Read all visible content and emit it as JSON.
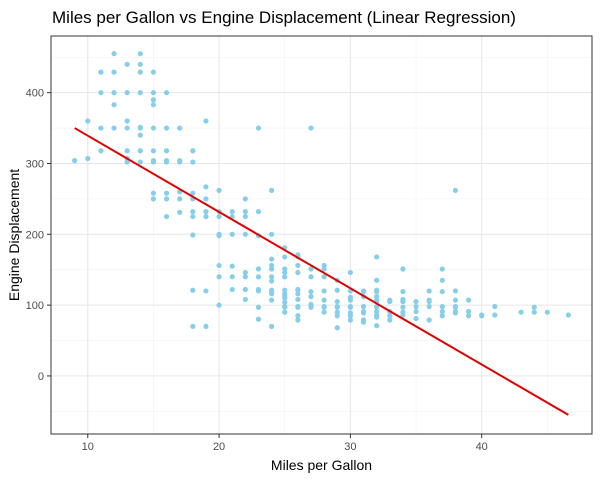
{
  "chart_data": {
    "type": "scatter",
    "title": "Miles per Gallon vs Engine Displacement (Linear Regression)",
    "xlabel": "Miles per Gallon",
    "ylabel": "Engine Displacement",
    "xlim": [
      7.2,
      48.4
    ],
    "ylim": [
      -82,
      480
    ],
    "x_ticks": [
      10,
      20,
      30,
      40
    ],
    "y_ticks": [
      0,
      100,
      200,
      300,
      400
    ],
    "grid": true,
    "legend": "none",
    "points_color": "#87CEEB",
    "line_color": "#E00000",
    "regression_line": {
      "x": [
        9.0,
        46.6
      ],
      "y": [
        350,
        -55
      ]
    },
    "points": [
      [
        9,
        304
      ],
      [
        10,
        307
      ],
      [
        10,
        360
      ],
      [
        11,
        318
      ],
      [
        11,
        350
      ],
      [
        11,
        400
      ],
      [
        11,
        429
      ],
      [
        12,
        350
      ],
      [
        12,
        383
      ],
      [
        12,
        400
      ],
      [
        12,
        429
      ],
      [
        12,
        455
      ],
      [
        13,
        302
      ],
      [
        13,
        307
      ],
      [
        13,
        318
      ],
      [
        13,
        350
      ],
      [
        13,
        360
      ],
      [
        13,
        400
      ],
      [
        13,
        440
      ],
      [
        14,
        302
      ],
      [
        14,
        318
      ],
      [
        14,
        340
      ],
      [
        14,
        350
      ],
      [
        14,
        351
      ],
      [
        14,
        400
      ],
      [
        14,
        429
      ],
      [
        14,
        440
      ],
      [
        14,
        455
      ],
      [
        15,
        250
      ],
      [
        15,
        258
      ],
      [
        15,
        302
      ],
      [
        15,
        304
      ],
      [
        15,
        318
      ],
      [
        15,
        350
      ],
      [
        15,
        383
      ],
      [
        15,
        390
      ],
      [
        15,
        400
      ],
      [
        15,
        429
      ],
      [
        16,
        225
      ],
      [
        16,
        250
      ],
      [
        16,
        258
      ],
      [
        16,
        302
      ],
      [
        16,
        304
      ],
      [
        16,
        318
      ],
      [
        16,
        350
      ],
      [
        16,
        400
      ],
      [
        17,
        231
      ],
      [
        17,
        250
      ],
      [
        17,
        260
      ],
      [
        17,
        302
      ],
      [
        17,
        304
      ],
      [
        17,
        350
      ],
      [
        18,
        70
      ],
      [
        18,
        121
      ],
      [
        18,
        199
      ],
      [
        18,
        225
      ],
      [
        18,
        232
      ],
      [
        18,
        250
      ],
      [
        18,
        258
      ],
      [
        18,
        302
      ],
      [
        18,
        318
      ],
      [
        19,
        70
      ],
      [
        19,
        120
      ],
      [
        19,
        225
      ],
      [
        19,
        232
      ],
      [
        19,
        250
      ],
      [
        19,
        267
      ],
      [
        19,
        360
      ],
      [
        20,
        100
      ],
      [
        20,
        140
      ],
      [
        20,
        156
      ],
      [
        20,
        198
      ],
      [
        20,
        200
      ],
      [
        20,
        225
      ],
      [
        20,
        232
      ],
      [
        20,
        262
      ],
      [
        21,
        122
      ],
      [
        21,
        140
      ],
      [
        21,
        155
      ],
      [
        21,
        200
      ],
      [
        21,
        225
      ],
      [
        21,
        232
      ],
      [
        22,
        108
      ],
      [
        22,
        122
      ],
      [
        22,
        140
      ],
      [
        22,
        146
      ],
      [
        22,
        200
      ],
      [
        22,
        225
      ],
      [
        22,
        232
      ],
      [
        22,
        250
      ],
      [
        23,
        80
      ],
      [
        23,
        97
      ],
      [
        23,
        120
      ],
      [
        23,
        122
      ],
      [
        23,
        140
      ],
      [
        23,
        151
      ],
      [
        23,
        198
      ],
      [
        23,
        232
      ],
      [
        23,
        350
      ],
      [
        24,
        70
      ],
      [
        24,
        107
      ],
      [
        24,
        116
      ],
      [
        24,
        120
      ],
      [
        24,
        121
      ],
      [
        24,
        134
      ],
      [
        24,
        140
      ],
      [
        24,
        151
      ],
      [
        24,
        156
      ],
      [
        24,
        165
      ],
      [
        24,
        200
      ],
      [
        24,
        262
      ],
      [
        25,
        90
      ],
      [
        25,
        97
      ],
      [
        25,
        98
      ],
      [
        25,
        104
      ],
      [
        25,
        110
      ],
      [
        25,
        113
      ],
      [
        25,
        116
      ],
      [
        25,
        121
      ],
      [
        25,
        140
      ],
      [
        25,
        146
      ],
      [
        25,
        151
      ],
      [
        25,
        168
      ],
      [
        25,
        181
      ],
      [
        26,
        79
      ],
      [
        26,
        85
      ],
      [
        26,
        97
      ],
      [
        26,
        98
      ],
      [
        26,
        108
      ],
      [
        26,
        116
      ],
      [
        26,
        121
      ],
      [
        26,
        122
      ],
      [
        26,
        146
      ],
      [
        26,
        156
      ],
      [
        26,
        168
      ],
      [
        26,
        171
      ],
      [
        27,
        97
      ],
      [
        27,
        98
      ],
      [
        27,
        101
      ],
      [
        27,
        112
      ],
      [
        27,
        119
      ],
      [
        27,
        140
      ],
      [
        27,
        151
      ],
      [
        27,
        350
      ],
      [
        28,
        90
      ],
      [
        28,
        97
      ],
      [
        28,
        98
      ],
      [
        28,
        107
      ],
      [
        28,
        120
      ],
      [
        28,
        140
      ],
      [
        28,
        151
      ],
      [
        28,
        156
      ],
      [
        29,
        68
      ],
      [
        29,
        85
      ],
      [
        29,
        90
      ],
      [
        29,
        97
      ],
      [
        29,
        98
      ],
      [
        29,
        105
      ],
      [
        29,
        121
      ],
      [
        29,
        135
      ],
      [
        30,
        79
      ],
      [
        30,
        85
      ],
      [
        30,
        89
      ],
      [
        30,
        97
      ],
      [
        30,
        98
      ],
      [
        30,
        107
      ],
      [
        30,
        111
      ],
      [
        30,
        120
      ],
      [
        30,
        146
      ],
      [
        31,
        76
      ],
      [
        31,
        79
      ],
      [
        31,
        89
      ],
      [
        31,
        91
      ],
      [
        31,
        98
      ],
      [
        31,
        112
      ],
      [
        31,
        119
      ],
      [
        31,
        120
      ],
      [
        32,
        71
      ],
      [
        32,
        83
      ],
      [
        32,
        86
      ],
      [
        32,
        91
      ],
      [
        32,
        97
      ],
      [
        32,
        98
      ],
      [
        32,
        105
      ],
      [
        32,
        107
      ],
      [
        32,
        112
      ],
      [
        32,
        119
      ],
      [
        32,
        121
      ],
      [
        32,
        135
      ],
      [
        32,
        168
      ],
      [
        33,
        79
      ],
      [
        33,
        85
      ],
      [
        33,
        91
      ],
      [
        33,
        105
      ],
      [
        33,
        107
      ],
      [
        34,
        86
      ],
      [
        34,
        90
      ],
      [
        34,
        97
      ],
      [
        34,
        105
      ],
      [
        34,
        108
      ],
      [
        34,
        119
      ],
      [
        34,
        151
      ],
      [
        35,
        81
      ],
      [
        35,
        91
      ],
      [
        35,
        98
      ],
      [
        35,
        105
      ],
      [
        36,
        79
      ],
      [
        36,
        98
      ],
      [
        36,
        105
      ],
      [
        36,
        107
      ],
      [
        36,
        120
      ],
      [
        37,
        85
      ],
      [
        37,
        91
      ],
      [
        37,
        98
      ],
      [
        37,
        119
      ],
      [
        37,
        135
      ],
      [
        37,
        151
      ],
      [
        38,
        89
      ],
      [
        38,
        91
      ],
      [
        38,
        97
      ],
      [
        38,
        98
      ],
      [
        38,
        107
      ],
      [
        38,
        120
      ],
      [
        38,
        262
      ],
      [
        39,
        85
      ],
      [
        39,
        91
      ],
      [
        39,
        107
      ],
      [
        40,
        85
      ],
      [
        40,
        86
      ],
      [
        41,
        86
      ],
      [
        41,
        98
      ],
      [
        43,
        90
      ],
      [
        44,
        90
      ],
      [
        44,
        97
      ],
      [
        45,
        90
      ],
      [
        46.6,
        86
      ]
    ]
  }
}
